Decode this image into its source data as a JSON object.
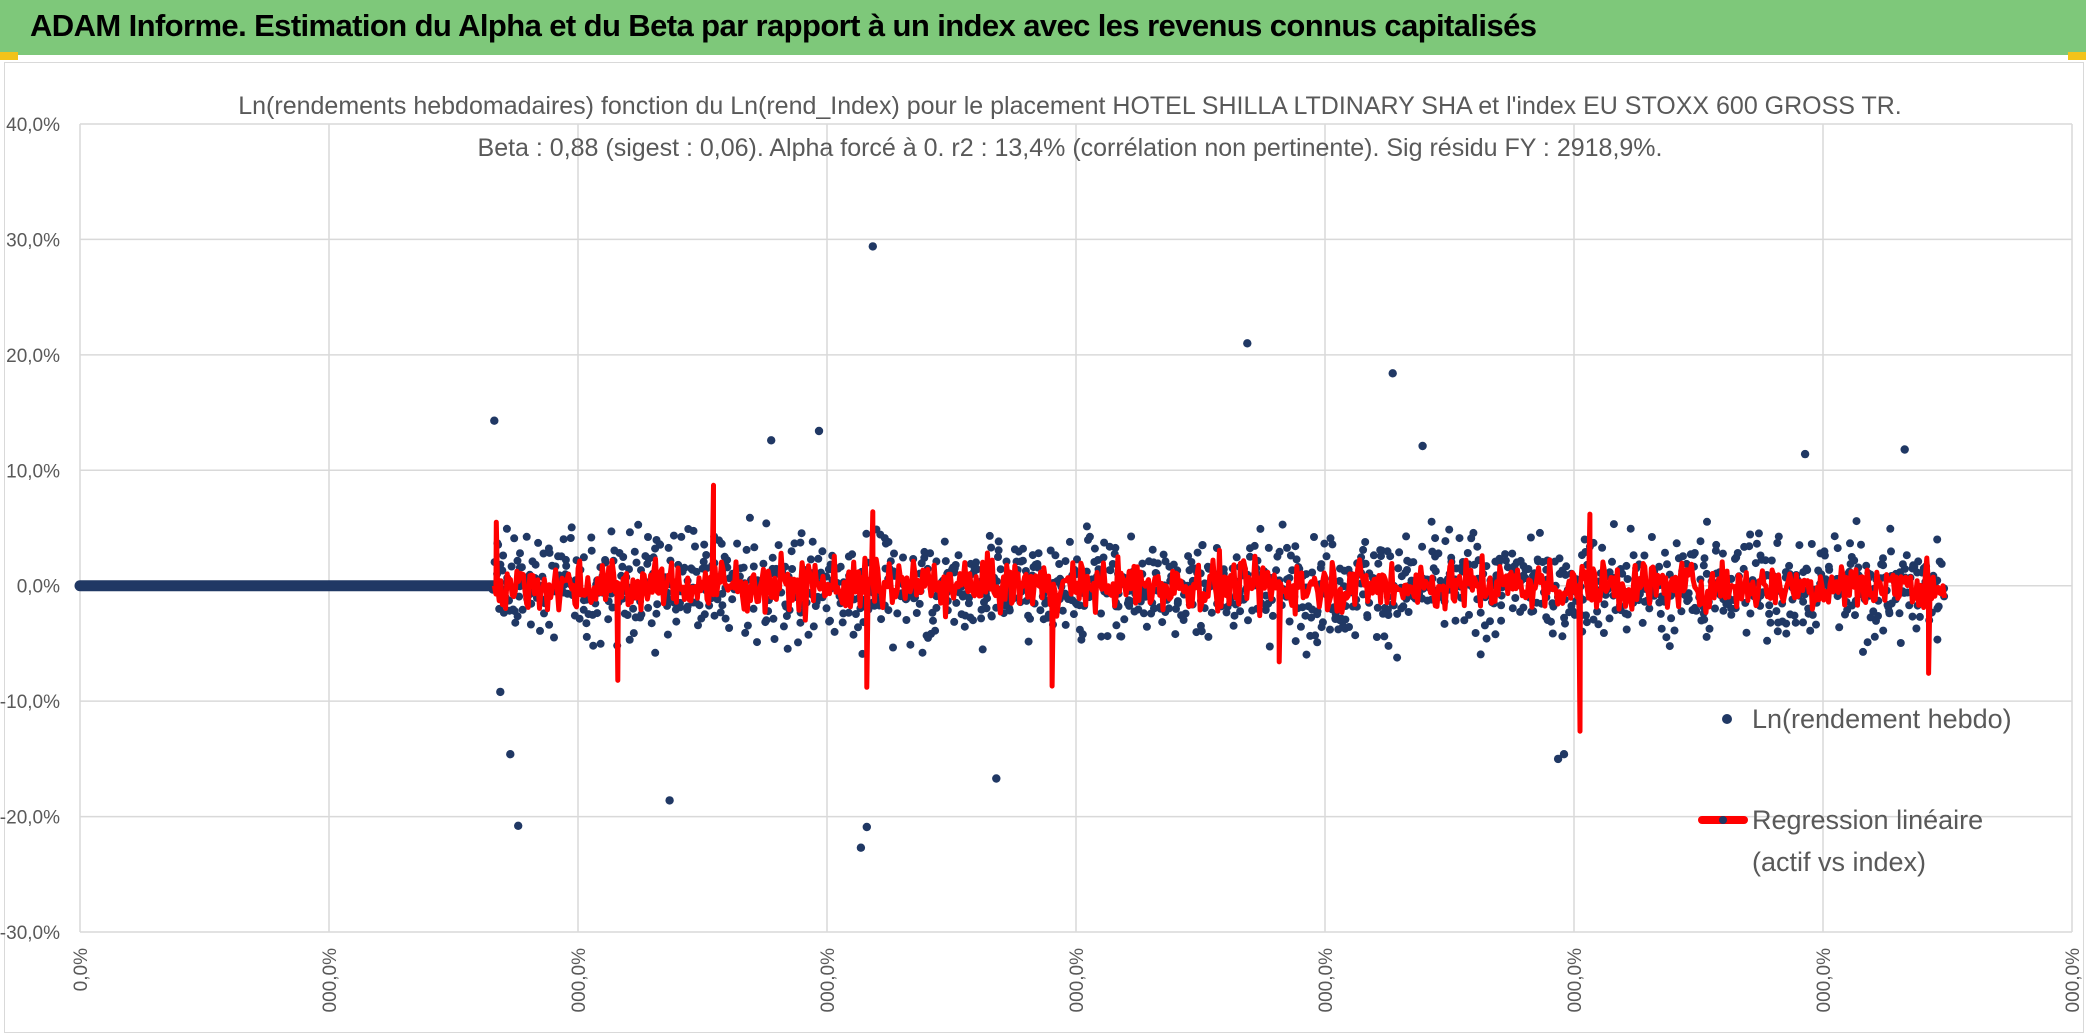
{
  "banner": {
    "title": "ADAM Informe. Estimation du Alpha et du Beta par rapport à un index avec les revenus connus capitalisés",
    "background": "#7ec87a"
  },
  "chart_data": {
    "type": "scatter",
    "title": "Ln(rendements hebdomadaires) fonction du Ln(rend_Index) pour le placement HOTEL SHILLA LTDINARY SHA et l'index EU STOXX 600 GROSS TR.",
    "subtitle": "Beta : 0,88 (sigest : 0,06). Alpha forcé à 0. r2 : 13,4% (corrélation non pertinente). Sig résidu FY : 2918,9%.",
    "xlabel": "",
    "ylabel": "",
    "ylim": [
      -30,
      40
    ],
    "y_ticks": [
      "40,0%",
      "30,0%",
      "20,0%",
      "10,0%",
      "0,0%",
      "-10,0%",
      "-20,0%",
      "-30,0%"
    ],
    "x_ticks": [
      "0,0%",
      "000,0%",
      "000,0%",
      "000,0%",
      "000,0%",
      "000,0%",
      "000,0%",
      "000,0%",
      "000,0%"
    ],
    "grid": true,
    "legend_position": "right",
    "series": [
      {
        "name": "Ln(rendement hebdo)",
        "kind": "scatter",
        "color": "#203864",
        "notable_points": [
          {
            "x": 0.208,
            "y": 14.3
          },
          {
            "x": 0.211,
            "y": -9.2
          },
          {
            "x": 0.216,
            "y": -14.6
          },
          {
            "x": 0.22,
            "y": -20.8
          },
          {
            "x": 0.296,
            "y": -18.6
          },
          {
            "x": 0.347,
            "y": 12.6
          },
          {
            "x": 0.371,
            "y": 13.4
          },
          {
            "x": 0.398,
            "y": 29.4
          },
          {
            "x": 0.392,
            "y": -22.7
          },
          {
            "x": 0.395,
            "y": -20.9
          },
          {
            "x": 0.46,
            "y": -16.7
          },
          {
            "x": 0.586,
            "y": 21.0
          },
          {
            "x": 0.659,
            "y": 18.4
          },
          {
            "x": 0.674,
            "y": 12.1
          },
          {
            "x": 0.745,
            "y": -14.6
          },
          {
            "x": 0.742,
            "y": -15.0
          },
          {
            "x": 0.866,
            "y": 11.4
          },
          {
            "x": 0.916,
            "y": 11.8
          }
        ]
      },
      {
        "name": "Regression linéaire (actif vs index)",
        "legend_lines": [
          "Regression linéaire",
          "(actif vs index)"
        ],
        "kind": "line",
        "color": "#ff0000",
        "notable_points": [
          {
            "x": 0.209,
            "y": 5.5
          },
          {
            "x": 0.27,
            "y": -8.2
          },
          {
            "x": 0.318,
            "y": 8.7
          },
          {
            "x": 0.395,
            "y": -8.8
          },
          {
            "x": 0.398,
            "y": 6.4
          },
          {
            "x": 0.488,
            "y": -8.7
          },
          {
            "x": 0.602,
            "y": -6.6
          },
          {
            "x": 0.753,
            "y": -12.6
          },
          {
            "x": 0.758,
            "y": 6.2
          },
          {
            "x": 0.928,
            "y": -7.6
          }
        ]
      }
    ]
  }
}
